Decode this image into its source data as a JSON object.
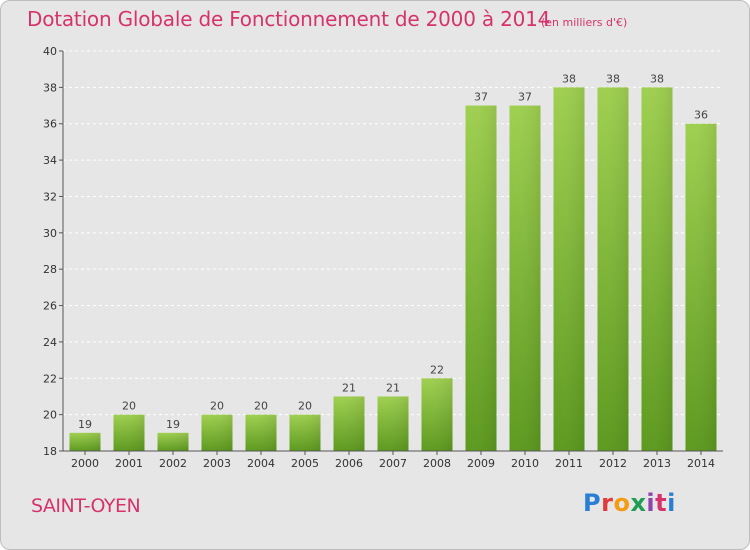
{
  "header": {
    "title": "Dotation Globale de Fonctionnement de 2000 à 2014",
    "subtitle": "(en milliers d'€)"
  },
  "place": "SAINT-OYEN",
  "brand": {
    "text": "Proxiti",
    "colors": [
      "#2a7fd4",
      "#e23b3b",
      "#f39c12",
      "#1f9d55",
      "#8e44ad",
      "#d6336c",
      "#2a7fd4"
    ]
  },
  "colors": {
    "accent": "#d6336c",
    "bar_light": "#9fd050",
    "bar_dark": "#5c9a1e",
    "background": "#e6e6e6"
  },
  "chart_data": {
    "type": "bar",
    "title": "Dotation Globale de Fonctionnement de 2000 à 2014",
    "subtitle": "(en milliers d'€)",
    "xlabel": "",
    "ylabel": "",
    "categories": [
      "2000",
      "2001",
      "2002",
      "2003",
      "2004",
      "2005",
      "2006",
      "2007",
      "2008",
      "2009",
      "2010",
      "2011",
      "2012",
      "2013",
      "2014"
    ],
    "values": [
      19,
      20,
      19,
      20,
      20,
      20,
      21,
      21,
      22,
      37,
      37,
      38,
      38,
      38,
      36
    ],
    "ylim": [
      18,
      40
    ],
    "yticks": [
      18,
      20,
      22,
      24,
      26,
      28,
      30,
      32,
      34,
      36,
      38,
      40
    ],
    "grid": true,
    "legend": "none"
  }
}
